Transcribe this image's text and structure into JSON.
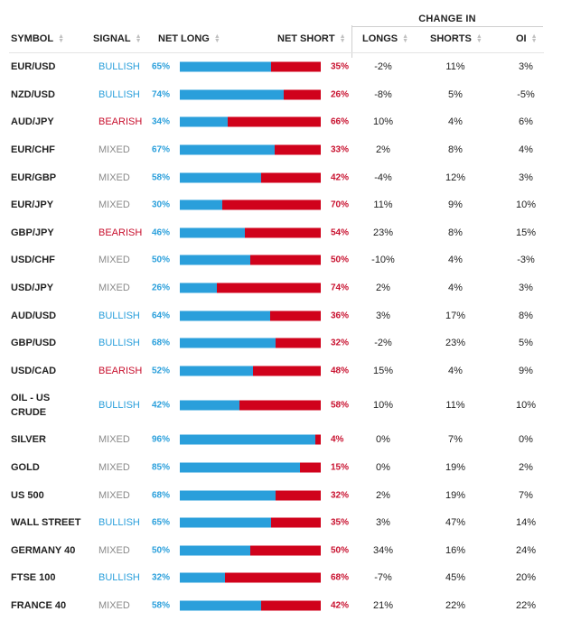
{
  "header": {
    "change_in": "CHANGE IN",
    "symbol": "SYMBOL",
    "signal": "SIGNAL",
    "net_long": "NET LONG",
    "net_short": "NET SHORT",
    "longs": "LONGS",
    "shorts": "SHORTS",
    "oi": "OI",
    "sort_icon": "sort-arrows-icon"
  },
  "colors": {
    "bullish": "#2a9fdb",
    "bearish": "#c8102e",
    "mixed": "#8a8a8a",
    "long_bar": "#2a9fdb",
    "short_bar": "#d0021b"
  },
  "rows": [
    {
      "symbol": "EUR/USD",
      "signal": "BULLISH",
      "net_long": "65%",
      "long_pct": 65,
      "net_short": "35%",
      "longs": "-2%",
      "shorts": "11%",
      "oi": "3%"
    },
    {
      "symbol": "NZD/USD",
      "signal": "BULLISH",
      "net_long": "74%",
      "long_pct": 74,
      "net_short": "26%",
      "longs": "-8%",
      "shorts": "5%",
      "oi": "-5%"
    },
    {
      "symbol": "AUD/JPY",
      "signal": "BEARISH",
      "net_long": "34%",
      "long_pct": 34,
      "net_short": "66%",
      "longs": "10%",
      "shorts": "4%",
      "oi": "6%"
    },
    {
      "symbol": "EUR/CHF",
      "signal": "MIXED",
      "net_long": "67%",
      "long_pct": 67,
      "net_short": "33%",
      "longs": "2%",
      "shorts": "8%",
      "oi": "4%"
    },
    {
      "symbol": "EUR/GBP",
      "signal": "MIXED",
      "net_long": "58%",
      "long_pct": 58,
      "net_short": "42%",
      "longs": "-4%",
      "shorts": "12%",
      "oi": "3%"
    },
    {
      "symbol": "EUR/JPY",
      "signal": "MIXED",
      "net_long": "30%",
      "long_pct": 30,
      "net_short": "70%",
      "longs": "11%",
      "shorts": "9%",
      "oi": "10%"
    },
    {
      "symbol": "GBP/JPY",
      "signal": "BEARISH",
      "net_long": "46%",
      "long_pct": 46,
      "net_short": "54%",
      "longs": "23%",
      "shorts": "8%",
      "oi": "15%"
    },
    {
      "symbol": "USD/CHF",
      "signal": "MIXED",
      "net_long": "50%",
      "long_pct": 50,
      "net_short": "50%",
      "longs": "-10%",
      "shorts": "4%",
      "oi": "-3%"
    },
    {
      "symbol": "USD/JPY",
      "signal": "MIXED",
      "net_long": "26%",
      "long_pct": 26,
      "net_short": "74%",
      "longs": "2%",
      "shorts": "4%",
      "oi": "3%"
    },
    {
      "symbol": "AUD/USD",
      "signal": "BULLISH",
      "net_long": "64%",
      "long_pct": 64,
      "net_short": "36%",
      "longs": "3%",
      "shorts": "17%",
      "oi": "8%"
    },
    {
      "symbol": "GBP/USD",
      "signal": "BULLISH",
      "net_long": "68%",
      "long_pct": 68,
      "net_short": "32%",
      "longs": "-2%",
      "shorts": "23%",
      "oi": "5%"
    },
    {
      "symbol": "USD/CAD",
      "signal": "BEARISH",
      "net_long": "52%",
      "long_pct": 52,
      "net_short": "48%",
      "longs": "15%",
      "shorts": "4%",
      "oi": "9%"
    },
    {
      "symbol": "OIL - US CRUDE",
      "signal": "BULLISH",
      "net_long": "42%",
      "long_pct": 42,
      "net_short": "58%",
      "longs": "10%",
      "shorts": "11%",
      "oi": "10%"
    },
    {
      "symbol": "SILVER",
      "signal": "MIXED",
      "net_long": "96%",
      "long_pct": 96,
      "net_short": "4%",
      "longs": "0%",
      "shorts": "7%",
      "oi": "0%"
    },
    {
      "symbol": "GOLD",
      "signal": "MIXED",
      "net_long": "85%",
      "long_pct": 85,
      "net_short": "15%",
      "longs": "0%",
      "shorts": "19%",
      "oi": "2%"
    },
    {
      "symbol": "US 500",
      "signal": "MIXED",
      "net_long": "68%",
      "long_pct": 68,
      "net_short": "32%",
      "longs": "2%",
      "shorts": "19%",
      "oi": "7%"
    },
    {
      "symbol": "WALL STREET",
      "signal": "BULLISH",
      "net_long": "65%",
      "long_pct": 65,
      "net_short": "35%",
      "longs": "3%",
      "shorts": "47%",
      "oi": "14%"
    },
    {
      "symbol": "GERMANY 40",
      "signal": "MIXED",
      "net_long": "50%",
      "long_pct": 50,
      "net_short": "50%",
      "longs": "34%",
      "shorts": "16%",
      "oi": "24%"
    },
    {
      "symbol": "FTSE 100",
      "signal": "BULLISH",
      "net_long": "32%",
      "long_pct": 32,
      "net_short": "68%",
      "longs": "-7%",
      "shorts": "45%",
      "oi": "20%"
    },
    {
      "symbol": "FRANCE 40",
      "signal": "MIXED",
      "net_long": "58%",
      "long_pct": 58,
      "net_short": "42%",
      "longs": "21%",
      "shorts": "22%",
      "oi": "22%"
    }
  ]
}
